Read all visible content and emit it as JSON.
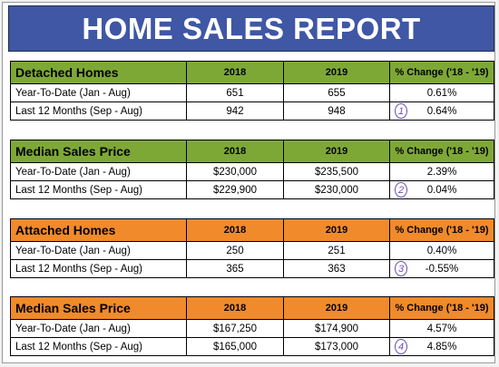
{
  "title": "HOME SALES REPORT",
  "colors": {
    "banner": "#3f57a4",
    "green": "#7ea836",
    "orange": "#f18a2a"
  },
  "columns": [
    "2018",
    "2019",
    "% Change ('18 - '19)"
  ],
  "sections": [
    {
      "name": "Detached Homes",
      "rows": [
        {
          "label": "Year-To-Date (Jan - Aug)",
          "v2018": "651",
          "v2019": "655",
          "change": "0.61%"
        },
        {
          "label": "Last 12 Months (Sep - Aug)",
          "v2018": "942",
          "v2019": "948",
          "change": "0.64%",
          "marker": "1"
        }
      ]
    },
    {
      "name": "Median Sales Price",
      "rows": [
        {
          "label": "Year-To-Date (Jan - Aug)",
          "v2018": "$230,000",
          "v2019": "$235,500",
          "change": "2.39%"
        },
        {
          "label": "Last 12 Months (Sep - Aug)",
          "v2018": "$229,900",
          "v2019": "$230,000",
          "change": "0.04%",
          "marker": "2"
        }
      ]
    },
    {
      "name": "Attached Homes",
      "rows": [
        {
          "label": "Year-To-Date (Jan - Aug)",
          "v2018": "250",
          "v2019": "251",
          "change": "0.40%"
        },
        {
          "label": "Last 12 Months (Sep - Aug)",
          "v2018": "365",
          "v2019": "363",
          "change": "-0.55%",
          "marker": "3"
        }
      ]
    },
    {
      "name": "Median Sales Price",
      "rows": [
        {
          "label": "Year-To-Date (Jan - Aug)",
          "v2018": "$167,250",
          "v2019": "$174,900",
          "change": "4.57%"
        },
        {
          "label": "Last 12 Months (Sep - Aug)",
          "v2018": "$165,000",
          "v2019": "$173,000",
          "change": "4.85%",
          "marker": "4"
        }
      ]
    }
  ]
}
